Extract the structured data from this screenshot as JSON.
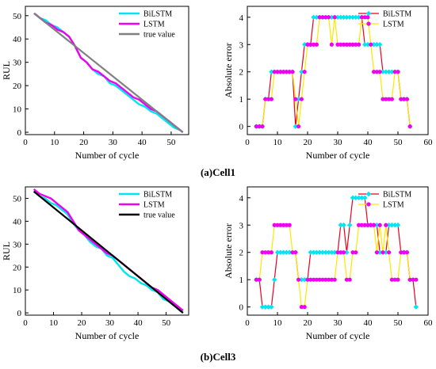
{
  "captions": [
    "(a)Cell1",
    "(b)Cell3"
  ],
  "colors": {
    "bilstm": "#00e5f0",
    "lstm": "#f000f0",
    "true_value_gray": "#808080",
    "true_value_black": "#000000",
    "err_line_red": "#e8001e",
    "err_line_yellow": "#ffe600",
    "bilstm_marker": "#00e5f0",
    "lstm_marker": "#f000f0"
  },
  "chart_data": [
    {
      "type": "line",
      "panel": "a-left",
      "xlabel": "Number of cycle",
      "ylabel": "RUL",
      "xlim": [
        0,
        56
      ],
      "ylim": [
        -1,
        54
      ],
      "xticks": [
        0,
        10,
        20,
        30,
        40,
        50
      ],
      "yticks": [
        0,
        10,
        20,
        30,
        40,
        50
      ],
      "legend_position": "top-right",
      "series": [
        {
          "name": "BiLSTM",
          "color_key": "bilstm",
          "x": [
            3,
            5,
            7,
            9,
            11,
            13,
            15,
            17,
            19,
            21,
            23,
            25,
            27,
            29,
            31,
            33,
            35,
            37,
            39,
            41,
            43,
            45,
            47,
            49,
            51,
            53,
            54
          ],
          "y": [
            51,
            49,
            48,
            46,
            45,
            43,
            41,
            37,
            32,
            30,
            27,
            25,
            24,
            21,
            20,
            18,
            16,
            14,
            12,
            11,
            9,
            8,
            6,
            4,
            2,
            1,
            0
          ]
        },
        {
          "name": "LSTM",
          "color_key": "lstm",
          "x": [
            3,
            5,
            7,
            9,
            11,
            13,
            15,
            17,
            19,
            21,
            23,
            25,
            27,
            29,
            31,
            33,
            35,
            37,
            39,
            41,
            43,
            45,
            47,
            49,
            51,
            53,
            54
          ],
          "y": [
            51,
            49,
            47,
            46,
            44,
            43,
            41,
            37,
            32,
            30,
            27,
            26,
            24,
            22,
            21,
            19,
            17,
            15,
            14,
            12,
            10,
            9,
            7,
            5,
            3,
            1,
            0
          ]
        },
        {
          "name": "true value",
          "color_key": "true_value_gray",
          "x": [
            3,
            54
          ],
          "y": [
            51,
            0
          ]
        }
      ]
    },
    {
      "type": "line",
      "panel": "a-right",
      "xlabel": "Number of cycle",
      "ylabel": "Absolute error",
      "xlim": [
        0,
        60
      ],
      "ylim": [
        -0.3,
        4.4
      ],
      "xticks": [
        0,
        10,
        20,
        30,
        40,
        50,
        60
      ],
      "yticks": [
        0,
        1,
        2,
        3,
        4
      ],
      "legend_position": "top-right",
      "series": [
        {
          "name": "BiLSTM",
          "color_key": "err_line_red",
          "marker_color_key": "bilstm_marker",
          "marker": "diamond",
          "x": [
            3,
            4,
            5,
            6,
            7,
            8,
            9,
            10,
            11,
            12,
            13,
            14,
            15,
            16,
            17,
            18,
            19,
            20,
            21,
            22,
            23,
            24,
            25,
            26,
            27,
            28,
            29,
            30,
            31,
            32,
            33,
            34,
            35,
            36,
            37,
            38,
            39,
            40,
            41,
            42,
            43,
            44,
            45,
            46,
            47,
            48,
            49,
            50,
            51,
            52,
            53,
            54
          ],
          "y": [
            0,
            0,
            0,
            1,
            1,
            2,
            2,
            2,
            2,
            2,
            2,
            2,
            2,
            0,
            1,
            2,
            3,
            3,
            3,
            4,
            4,
            4,
            4,
            4,
            4,
            4,
            4,
            4,
            4,
            4,
            4,
            4,
            4,
            4,
            4,
            4,
            3,
            3,
            3,
            3,
            3,
            3,
            2,
            2,
            2,
            2,
            2,
            2,
            1,
            1,
            1,
            0
          ]
        },
        {
          "name": "LSTM",
          "color_key": "err_line_yellow",
          "marker_color_key": "lstm_marker",
          "marker": "circle",
          "x": [
            3,
            4,
            5,
            6,
            7,
            8,
            9,
            10,
            11,
            12,
            13,
            14,
            15,
            16,
            17,
            18,
            19,
            20,
            21,
            22,
            23,
            24,
            25,
            26,
            27,
            28,
            29,
            30,
            31,
            32,
            33,
            34,
            35,
            36,
            37,
            38,
            39,
            40,
            41,
            42,
            43,
            44,
            45,
            46,
            47,
            48,
            49,
            50,
            51,
            52,
            53,
            54
          ],
          "y": [
            0,
            0,
            0,
            1,
            1,
            1,
            2,
            2,
            2,
            2,
            2,
            2,
            2,
            1,
            0,
            1,
            2,
            3,
            3,
            3,
            3,
            4,
            4,
            4,
            4,
            3,
            4,
            3,
            3,
            3,
            3,
            3,
            3,
            3,
            3,
            4,
            4,
            4,
            3,
            2,
            2,
            2,
            1,
            1,
            1,
            1,
            2,
            2,
            1,
            1,
            1,
            0
          ]
        }
      ]
    },
    {
      "type": "line",
      "panel": "b-left",
      "xlabel": "Number of cycle",
      "ylabel": "RUL",
      "xlim": [
        0,
        58
      ],
      "ylim": [
        -1,
        55
      ],
      "xticks": [
        0,
        10,
        20,
        30,
        40,
        50
      ],
      "yticks": [
        0,
        10,
        20,
        30,
        40,
        50
      ],
      "legend_position": "top-right",
      "series": [
        {
          "name": "BiLSTM",
          "color_key": "bilstm",
          "x": [
            3,
            5,
            7,
            9,
            11,
            13,
            15,
            17,
            19,
            21,
            23,
            25,
            27,
            29,
            31,
            33,
            35,
            37,
            39,
            41,
            43,
            45,
            47,
            49,
            51,
            53,
            55,
            56
          ],
          "y": [
            53,
            51,
            50,
            48,
            47,
            45,
            43,
            39,
            36,
            34,
            31,
            29,
            28,
            25,
            24,
            21,
            18,
            16,
            15,
            13,
            12,
            10,
            9,
            6,
            5,
            3,
            1,
            0
          ]
        },
        {
          "name": "LSTM",
          "color_key": "lstm",
          "x": [
            3,
            5,
            7,
            9,
            11,
            13,
            15,
            17,
            19,
            21,
            23,
            25,
            27,
            29,
            31,
            33,
            35,
            37,
            39,
            41,
            43,
            45,
            47,
            49,
            51,
            53,
            55,
            56
          ],
          "y": [
            54,
            52,
            51,
            50,
            48,
            46,
            44,
            40,
            36,
            34,
            32,
            30,
            28,
            26,
            25,
            23,
            21,
            19,
            17,
            15,
            13,
            11,
            10,
            8,
            6,
            4,
            2,
            1
          ]
        },
        {
          "name": "true value",
          "color_key": "true_value_black",
          "x": [
            3,
            56
          ],
          "y": [
            53,
            0
          ]
        }
      ]
    },
    {
      "type": "line",
      "panel": "b-right",
      "xlabel": "Number of cycle",
      "ylabel": "Absolute error",
      "xlim": [
        0,
        60
      ],
      "ylim": [
        -0.3,
        4.4
      ],
      "xticks": [
        0,
        10,
        20,
        30,
        40,
        50,
        60
      ],
      "yticks": [
        0,
        1,
        2,
        3,
        4
      ],
      "legend_position": "top-right",
      "series": [
        {
          "name": "BiLSTM",
          "color_key": "err_line_red",
          "marker_color_key": "bilstm_marker",
          "marker": "diamond",
          "x": [
            3,
            4,
            5,
            6,
            7,
            8,
            9,
            10,
            11,
            12,
            13,
            14,
            15,
            16,
            17,
            18,
            19,
            20,
            21,
            22,
            23,
            24,
            25,
            26,
            27,
            28,
            29,
            30,
            31,
            32,
            33,
            34,
            35,
            36,
            37,
            38,
            39,
            40,
            41,
            42,
            43,
            44,
            45,
            46,
            47,
            48,
            49,
            50,
            51,
            52,
            53,
            54,
            55,
            56
          ],
          "y": [
            1,
            1,
            0,
            0,
            0,
            0,
            1,
            2,
            2,
            2,
            2,
            2,
            2,
            2,
            1,
            1,
            1,
            1,
            2,
            2,
            2,
            2,
            2,
            2,
            2,
            2,
            2,
            2,
            3,
            3,
            2,
            3,
            4,
            4,
            4,
            4,
            4,
            3,
            3,
            3,
            3,
            2,
            2,
            2,
            3,
            3,
            3,
            3,
            2,
            2,
            2,
            1,
            1,
            0
          ]
        },
        {
          "name": "LSTM",
          "color_key": "err_line_yellow",
          "marker_color_key": "lstm_marker",
          "marker": "circle",
          "x": [
            3,
            4,
            5,
            6,
            7,
            8,
            9,
            10,
            11,
            12,
            13,
            14,
            15,
            16,
            17,
            18,
            19,
            20,
            21,
            22,
            23,
            24,
            25,
            26,
            27,
            28,
            29,
            30,
            31,
            32,
            33,
            34,
            35,
            36,
            37,
            38,
            39,
            40,
            41,
            42,
            43,
            44,
            45,
            46,
            47,
            48,
            49,
            50,
            51,
            52,
            53,
            54,
            55,
            56
          ],
          "y": [
            1,
            1,
            2,
            2,
            2,
            2,
            3,
            3,
            3,
            3,
            3,
            3,
            2,
            2,
            1,
            0,
            0,
            1,
            1,
            1,
            1,
            1,
            1,
            1,
            1,
            1,
            1,
            2,
            2,
            2,
            1,
            1,
            2,
            2,
            3,
            3,
            3,
            3,
            3,
            3,
            2,
            3,
            2,
            3,
            2,
            1,
            1,
            1,
            2,
            2,
            2,
            1,
            1,
            1
          ]
        }
      ]
    }
  ]
}
